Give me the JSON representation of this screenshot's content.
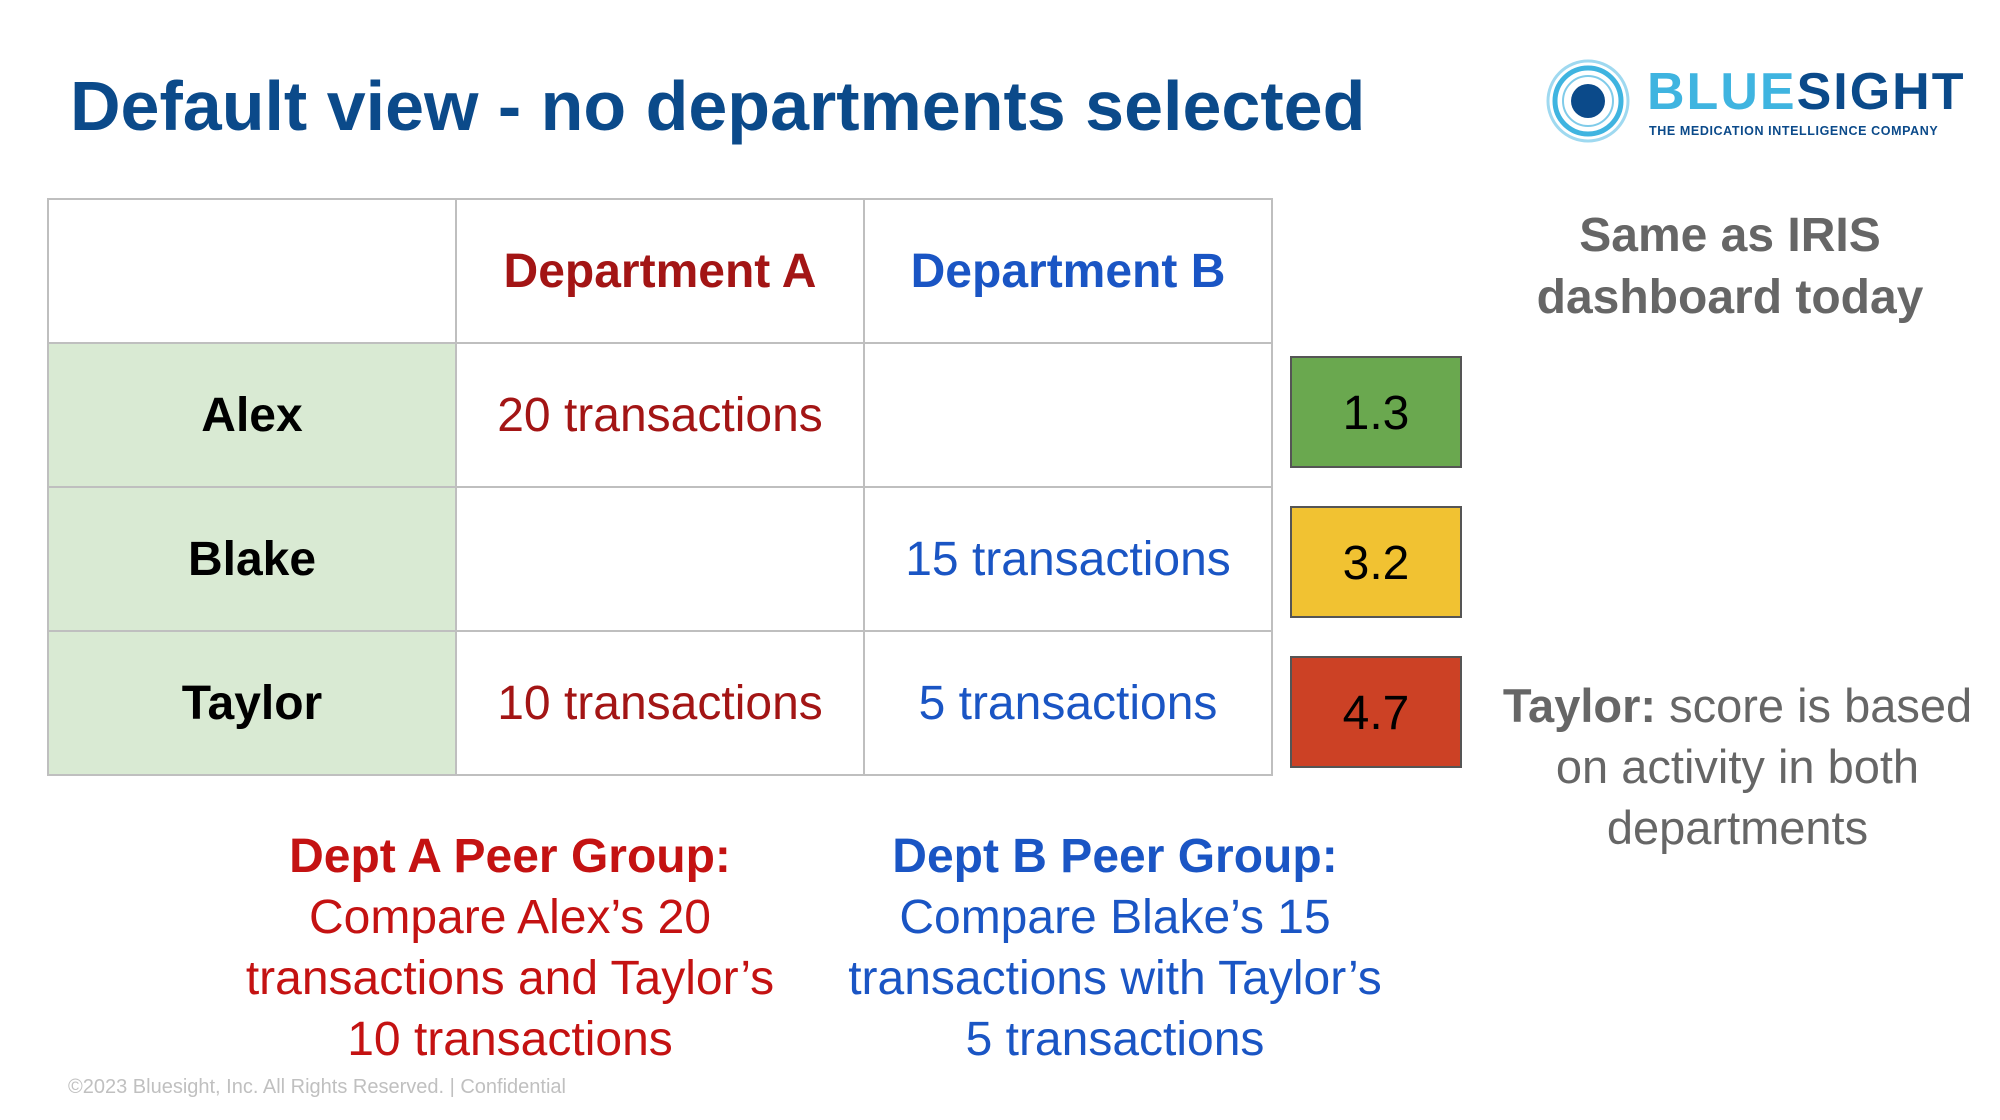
{
  "slide": {
    "title": "Default view - no departments selected",
    "footer": "©2023 Bluesight, Inc. All Rights Reserved. | Confidential"
  },
  "logo": {
    "word_part1": "BLUE",
    "word_part2": "SIGHT",
    "tagline": "THE MEDICATION INTELLIGENCE COMPANY",
    "icon": "concentric-circle-logo-icon"
  },
  "table": {
    "headers": [
      "",
      "Department A",
      "Department B"
    ],
    "rows": [
      {
        "name": "Alex",
        "dept_a": "20 transactions",
        "dept_b": ""
      },
      {
        "name": "Blake",
        "dept_a": "",
        "dept_b": "15 transactions"
      },
      {
        "name": "Taylor",
        "dept_a": "10 transactions",
        "dept_b": "5 transactions"
      }
    ]
  },
  "scores": [
    {
      "value": "1.3",
      "color": "#6aa84f"
    },
    {
      "value": "3.2",
      "color": "#f1c232"
    },
    {
      "value": "4.7",
      "color": "#cc4125"
    }
  ],
  "notes": {
    "top_line1": "Same as IRIS",
    "top_line2": "dashboard today",
    "taylor_label": "Taylor:",
    "taylor_text_1": " score is based",
    "taylor_text_2": "on activity in both",
    "taylor_text_3": "departments"
  },
  "peer_groups": {
    "a": {
      "heading": "Dept A Peer Group:",
      "line1": "Compare Alex’s 20",
      "line2": "transactions and Taylor’s",
      "line3": "10 transactions"
    },
    "b": {
      "heading": "Dept B Peer Group:",
      "line1": "Compare Blake’s 15",
      "line2": "transactions with Taylor’s",
      "line3": "5 transactions"
    }
  },
  "colors": {
    "title_blue": "#0b4a8a",
    "dept_a_red": "#a31515",
    "dept_b_blue": "#1a55c4",
    "name_cell_green": "#d9ead3"
  }
}
